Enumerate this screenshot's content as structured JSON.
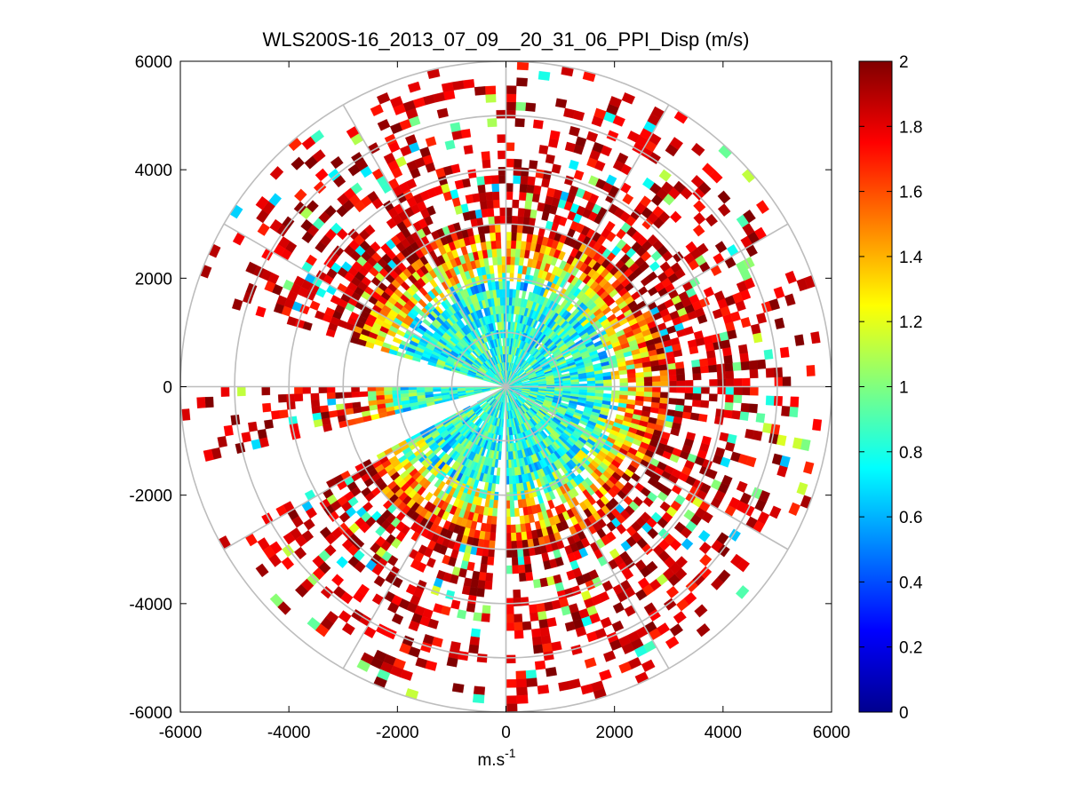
{
  "chart_data": {
    "type": "polar-ppi-scatter",
    "title": "WLS200S-16_2013_07_09__20_31_06_PPI_Disp (m/s)",
    "xlabel": "m.s",
    "xlabel_superscript": "-1",
    "ylabel": "",
    "xlim": [
      -6000,
      6000
    ],
    "ylim": [
      -6000,
      6000
    ],
    "xticks": [
      "-6000",
      "-4000",
      "-2000",
      "0",
      "2000",
      "4000",
      "6000"
    ],
    "yticks": [
      "6000",
      "4000",
      "2000",
      "0",
      "-2000",
      "-4000",
      "-6000"
    ],
    "polar_grid": {
      "ring_radii": [
        1000,
        2000,
        3000,
        4000,
        5000,
        6000
      ],
      "spoke_angles_deg": [
        0,
        30,
        60,
        90,
        120,
        150,
        180,
        210,
        240,
        270,
        300,
        330
      ]
    },
    "colorbar": {
      "min": 0,
      "max": 2,
      "ticks": [
        "0",
        "0.2",
        "0.4",
        "0.6",
        "0.8",
        "1",
        "1.2",
        "1.4",
        "1.6",
        "1.8",
        "2"
      ],
      "colormap": "jet"
    },
    "data_gaps_deg": [
      {
        "from": 165,
        "to": 180
      },
      {
        "from": 194,
        "to": 208
      },
      {
        "from": 266,
        "to": 269
      }
    ],
    "value_regions": [
      {
        "r_range": [
          0,
          1800
        ],
        "mean": 0.82,
        "note": "near range mostly cyan/green"
      },
      {
        "r_range": [
          1800,
          3000
        ],
        "mean": 1.2,
        "note": "mid range green/yellow"
      },
      {
        "r_range": [
          3000,
          6000
        ],
        "mean": 1.85,
        "note": "far range mostly dark red"
      }
    ]
  }
}
